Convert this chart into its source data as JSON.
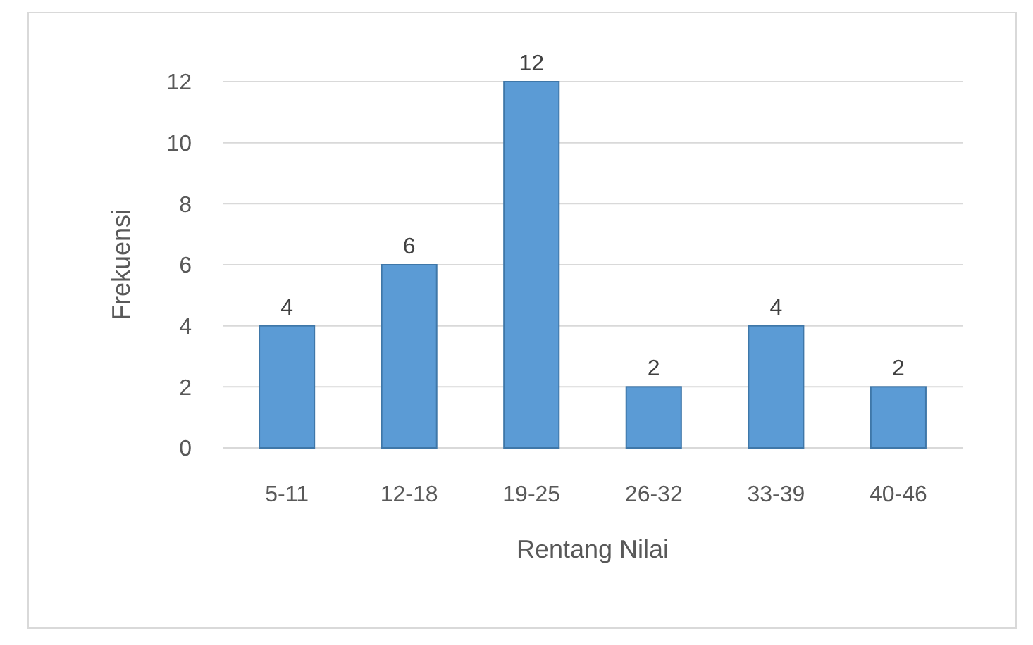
{
  "chart_data": {
    "type": "bar",
    "xlabel": "Rentang Nilai",
    "ylabel": "Frekuensi",
    "categories": [
      "5-11",
      "12-18",
      "19-25",
      "26-32",
      "33-39",
      "40-46"
    ],
    "values": [
      4,
      6,
      12,
      2,
      4,
      2
    ],
    "color": "#5b9bd5",
    "ylim": [
      0,
      12
    ],
    "yticks": [
      0,
      2,
      4,
      6,
      8,
      10,
      12
    ],
    "grid": "y",
    "data_labels": true
  }
}
